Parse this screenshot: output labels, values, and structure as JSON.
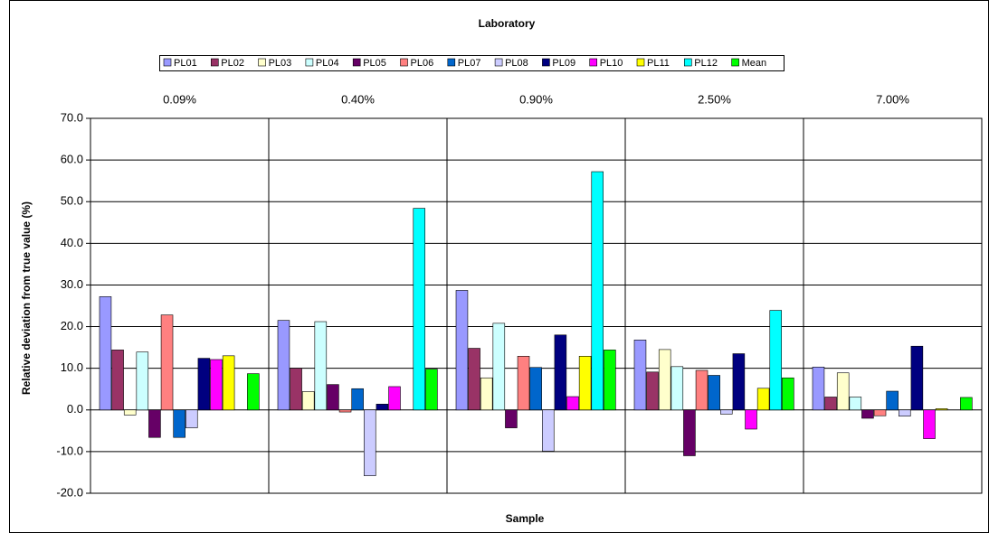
{
  "chart_data": {
    "type": "bar",
    "title": "Laboratory",
    "x_label": "Sample",
    "y_label": "Relative deviation from true value (%)",
    "categories": [
      "0.09%",
      "0.40%",
      "0.90%",
      "2.50%",
      "7.00%"
    ],
    "series": [
      {
        "name": "PL01",
        "color": "#9999ff",
        "values": [
          27.2,
          21.5,
          28.7,
          16.8,
          10.3
        ]
      },
      {
        "name": "PL02",
        "color": "#993366",
        "values": [
          14.4,
          10.0,
          14.8,
          9.1,
          3.1
        ]
      },
      {
        "name": "PL03",
        "color": "#ffffcc",
        "values": [
          -1.2,
          4.4,
          7.7,
          14.5,
          8.9
        ]
      },
      {
        "name": "PL04",
        "color": "#ccffff",
        "values": [
          13.9,
          21.2,
          20.8,
          10.4,
          3.1
        ]
      },
      {
        "name": "PL05",
        "color": "#660066",
        "values": [
          -6.6,
          6.1,
          -4.3,
          -11.0,
          -2.0
        ]
      },
      {
        "name": "PL06",
        "color": "#ff8080",
        "values": [
          22.8,
          -0.5,
          12.9,
          9.5,
          -1.4
        ]
      },
      {
        "name": "PL07",
        "color": "#0066cc",
        "values": [
          -6.6,
          5.1,
          10.2,
          8.3,
          4.5
        ]
      },
      {
        "name": "PL08",
        "color": "#ccccff",
        "values": [
          -4.3,
          -15.8,
          -9.9,
          -1.0,
          -1.5
        ]
      },
      {
        "name": "PL09",
        "color": "#000080",
        "values": [
          12.4,
          1.4,
          18.0,
          13.5,
          15.3
        ]
      },
      {
        "name": "PL10",
        "color": "#ff00ff",
        "values": [
          12.1,
          5.6,
          3.2,
          -4.6,
          -6.9
        ]
      },
      {
        "name": "PL11",
        "color": "#ffff00",
        "values": [
          13.0,
          null,
          12.9,
          5.2,
          0.3
        ]
      },
      {
        "name": "PL12",
        "color": "#00ffff",
        "values": [
          null,
          48.4,
          57.2,
          23.9,
          null
        ]
      },
      {
        "name": "Mean",
        "color": "#00ff00",
        "values": [
          8.7,
          9.8,
          14.4,
          7.7,
          3.0
        ]
      }
    ],
    "ylim": [
      -20,
      70
    ],
    "yticks": [
      {
        "value": -20,
        "label": "-20.0"
      },
      {
        "value": -10,
        "label": "-10.0"
      },
      {
        "value": 0,
        "label": "0.0"
      },
      {
        "value": 10,
        "label": "10.0"
      },
      {
        "value": 20,
        "label": "20.0"
      },
      {
        "value": 30,
        "label": "30.0"
      },
      {
        "value": 40,
        "label": "40.0"
      },
      {
        "value": 50,
        "label": "50.0"
      },
      {
        "value": 60,
        "label": "60.0"
      },
      {
        "value": 70,
        "label": "70.0"
      }
    ],
    "grid": true
  }
}
